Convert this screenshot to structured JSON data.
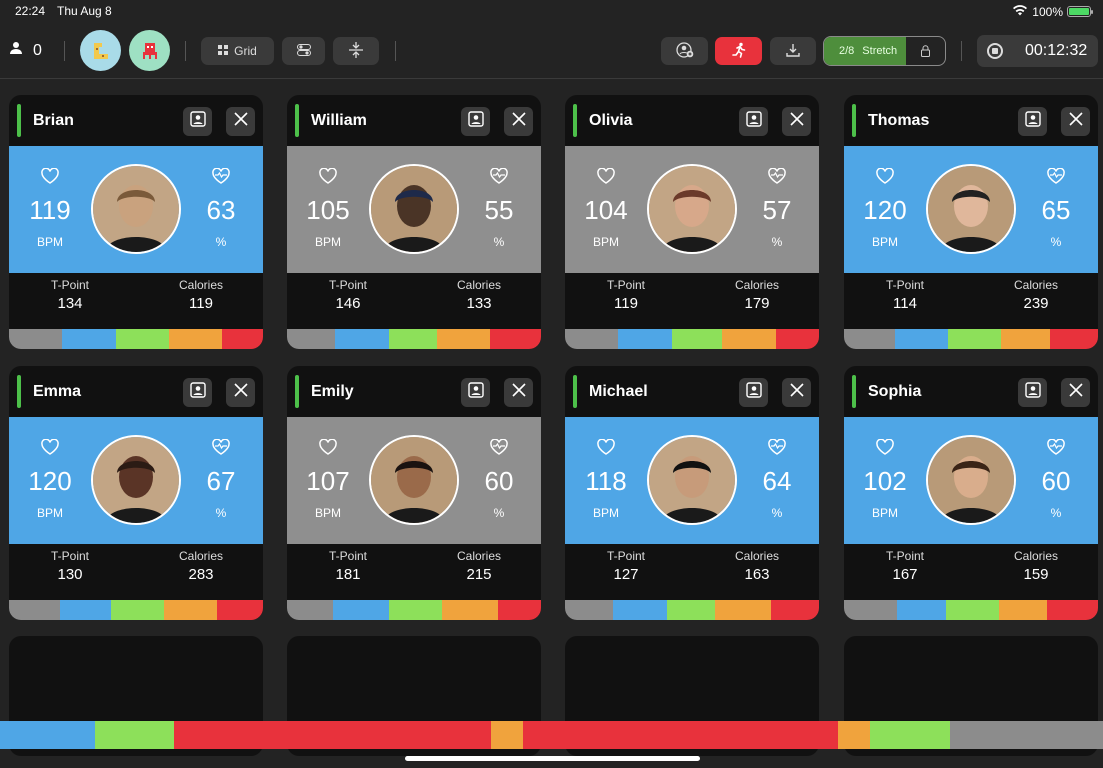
{
  "status_bar": {
    "time": "22:24",
    "date": "Thu Aug 8",
    "battery": "100%"
  },
  "toolbar": {
    "participants_count": "0",
    "grid_label": "Grid",
    "stretch_progress": "2/8",
    "stretch_label": "Stretch",
    "timer": "00:12:32",
    "colors": {
      "record_button": "#e8323c",
      "stretch_bg": "#4e8e3c"
    }
  },
  "cards": [
    {
      "name": "Brian",
      "bpm": "119",
      "bpm_unit": "BPM",
      "percent": "63",
      "percent_unit": "%",
      "zone": "blue",
      "tpoint_label": "T-Point",
      "tpoint": "134",
      "calories_label": "Calories",
      "calories": "119",
      "zone_split": [
        21,
        21,
        21,
        21,
        16
      ]
    },
    {
      "name": "William",
      "bpm": "105",
      "bpm_unit": "BPM",
      "percent": "55",
      "percent_unit": "%",
      "zone": "grey",
      "tpoint_label": "T-Point",
      "tpoint": "146",
      "calories_label": "Calories",
      "calories": "133",
      "zone_split": [
        19,
        21,
        19,
        21,
        20
      ]
    },
    {
      "name": "Olivia",
      "bpm": "104",
      "bpm_unit": "BPM",
      "percent": "57",
      "percent_unit": "%",
      "zone": "grey",
      "tpoint_label": "T-Point",
      "tpoint": "119",
      "calories_label": "Calories",
      "calories": "179",
      "zone_split": [
        21,
        21,
        20,
        21,
        17
      ]
    },
    {
      "name": "Thomas",
      "bpm": "120",
      "bpm_unit": "BPM",
      "percent": "65",
      "percent_unit": "%",
      "zone": "blue",
      "tpoint_label": "T-Point",
      "tpoint": "114",
      "calories_label": "Calories",
      "calories": "239",
      "zone_split": [
        20,
        21,
        21,
        19,
        19
      ]
    },
    {
      "name": "Emma",
      "bpm": "120",
      "bpm_unit": "BPM",
      "percent": "67",
      "percent_unit": "%",
      "zone": "blue",
      "tpoint_label": "T-Point",
      "tpoint": "130",
      "calories_label": "Calories",
      "calories": "283",
      "zone_split": [
        20,
        20,
        21,
        21,
        18
      ]
    },
    {
      "name": "Emily",
      "bpm": "107",
      "bpm_unit": "BPM",
      "percent": "60",
      "percent_unit": "%",
      "zone": "grey",
      "tpoint_label": "T-Point",
      "tpoint": "181",
      "calories_label": "Calories",
      "calories": "215",
      "zone_split": [
        18,
        22,
        21,
        22,
        17
      ]
    },
    {
      "name": "Michael",
      "bpm": "118",
      "bpm_unit": "BPM",
      "percent": "64",
      "percent_unit": "%",
      "zone": "blue",
      "tpoint_label": "T-Point",
      "tpoint": "127",
      "calories_label": "Calories",
      "calories": "163",
      "zone_split": [
        19,
        21,
        19,
        22,
        19
      ]
    },
    {
      "name": "Sophia",
      "bpm": "102",
      "bpm_unit": "BPM",
      "percent": "60",
      "percent_unit": "%",
      "zone": "blue",
      "tpoint_label": "T-Point",
      "tpoint": "167",
      "calories_label": "Calories",
      "calories": "159",
      "zone_split": [
        21,
        19,
        21,
        19,
        20
      ]
    }
  ],
  "zone_colors": [
    "#8c8c8c",
    "#4fa6e6",
    "#8de05a",
    "#f0a33d",
    "#e8323c"
  ],
  "session_timeline": [
    {
      "color": "#4fa6e6",
      "share": 8.6
    },
    {
      "color": "#8de05a",
      "share": 7.2
    },
    {
      "color": "#e8323c",
      "share": 28.7
    },
    {
      "color": "#f0a33d",
      "share": 2.9
    },
    {
      "color": "#e8323c",
      "share": 28.6
    },
    {
      "color": "#f0a33d",
      "share": 2.9
    },
    {
      "color": "#8de05a",
      "share": 7.2
    },
    {
      "color": "#8c8c8c",
      "share": 13.9
    }
  ]
}
